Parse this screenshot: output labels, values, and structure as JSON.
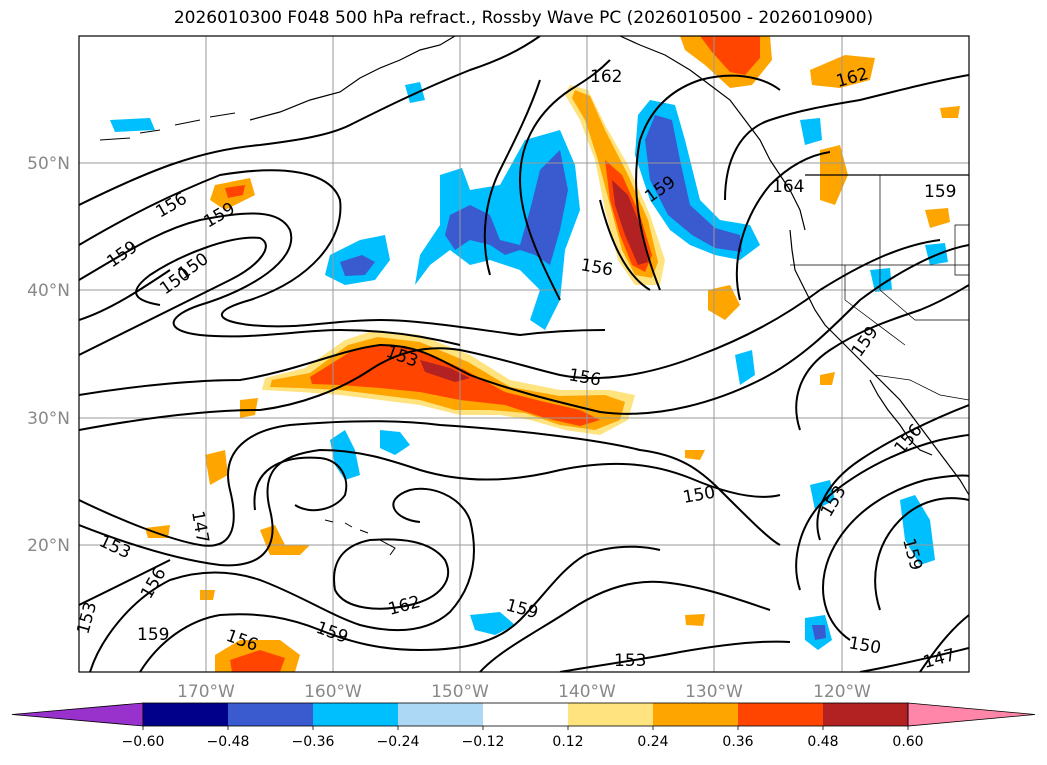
{
  "title": "2026010300 F048 500 hPa refract., Rossby Wave PC (2026010500 - 2026010900)",
  "map": {
    "lat_labels": [
      "50°N",
      "40°N",
      "30°N",
      "20°N"
    ],
    "lon_labels": [
      "170°W",
      "160°W",
      "150°W",
      "140°W",
      "130°W",
      "120°W"
    ],
    "contour_labels": [
      "162",
      "162",
      "156",
      "159",
      "150",
      "159",
      "153",
      "156",
      "159",
      "164",
      "156",
      "159",
      "159",
      "150",
      "153",
      "156",
      "153",
      "159",
      "156",
      "159",
      "162",
      "159",
      "153",
      "150",
      "147",
      "153",
      "159",
      "150",
      "147",
      "156"
    ]
  },
  "colorbar": {
    "ticks": [
      "−0.60",
      "−0.48",
      "−0.36",
      "−0.24",
      "−0.12",
      "0.12",
      "0.24",
      "0.36",
      "0.48",
      "0.60"
    ],
    "colors": [
      "#9932cc",
      "#00008b",
      "#3a5bd0",
      "#00bfff",
      "#add8f5",
      "#ffffff",
      "#ffe37f",
      "#ffa500",
      "#ff4500",
      "#b22222",
      "#ff85a9"
    ]
  },
  "colors": {
    "contour": "#000000",
    "grid": "#999999",
    "coast": "#000000"
  }
}
